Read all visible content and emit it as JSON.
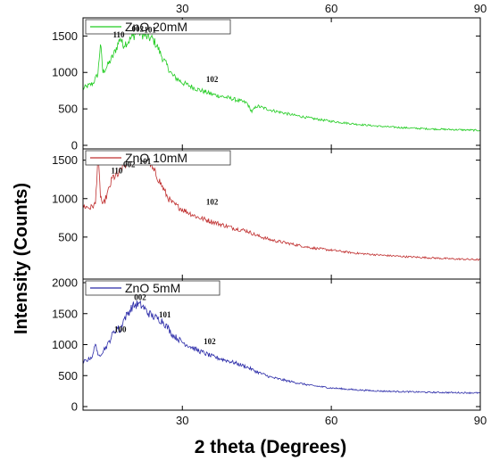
{
  "chart_data": {
    "type": "line",
    "xlabel": "2 theta (Degrees)",
    "ylabel": "Intensity (Counts)",
    "x_ticks": [
      30,
      60,
      90
    ],
    "xlim": [
      10,
      90
    ],
    "panels": [
      {
        "legend": "ZnO  20mM",
        "color": "#22cc22",
        "ylim": [
          0,
          1700
        ],
        "y_ticks": [
          0,
          500,
          1000,
          1500
        ],
        "peaks": [
          {
            "label": "110",
            "x": 17.2,
            "y": 1480
          },
          {
            "label": "002",
            "x": 21.0,
            "y": 1560
          },
          {
            "label": "101",
            "x": 23.5,
            "y": 1550
          },
          {
            "label": "102",
            "x": 36.0,
            "y": 870
          }
        ],
        "series": [
          {
            "x": [
              10,
              12,
              13,
              13.5,
              14,
              15,
              16,
              17,
              17.5,
              18,
              19,
              20,
              21,
              22,
              23,
              24,
              25,
              26,
              27,
              28,
              30,
              33,
              36,
              40,
              43,
              44,
              45,
              48,
              52,
              56,
              60,
              65,
              70,
              75,
              80,
              85,
              90
            ],
            "values": [
              780,
              850,
              980,
              1400,
              1000,
              1100,
              1220,
              1380,
              1480,
              1380,
              1420,
              1490,
              1560,
              1520,
              1480,
              1460,
              1350,
              1200,
              1080,
              960,
              860,
              770,
              700,
              640,
              580,
              460,
              540,
              480,
              420,
              370,
              330,
              290,
              260,
              240,
              225,
              215,
              205
            ]
          }
        ]
      },
      {
        "legend": "ZnO  10mM",
        "color": "#c03030",
        "ylim": [
          0,
          1600
        ],
        "y_ticks": [
          500,
          1000,
          1500
        ],
        "peaks": [
          {
            "label": "110",
            "x": 16.8,
            "y": 1330
          },
          {
            "label": "002",
            "x": 19.3,
            "y": 1410
          },
          {
            "label": "101",
            "x": 22.5,
            "y": 1450
          },
          {
            "label": "102",
            "x": 36.0,
            "y": 920
          }
        ],
        "series": [
          {
            "x": [
              10,
              11.5,
              12.5,
              13,
              13.5,
              14,
              15,
              16,
              17,
              18,
              19,
              20,
              21,
              22,
              23,
              24,
              25,
              26,
              27,
              28,
              30,
              33,
              36,
              40,
              43,
              45,
              48,
              52,
              56,
              60,
              65,
              70,
              75,
              80,
              85,
              90
            ],
            "values": [
              900,
              880,
              930,
              1560,
              1050,
              900,
              1080,
              1280,
              1300,
              1420,
              1460,
              1500,
              1520,
              1480,
              1530,
              1380,
              1280,
              1150,
              1020,
              940,
              860,
              760,
              700,
              620,
              580,
              520,
              460,
              410,
              360,
              330,
              290,
              265,
              245,
              230,
              215,
              205
            ]
          }
        ]
      },
      {
        "legend": "ZnO  5mM",
        "color": "#2a2aa8",
        "ylim": [
          0,
          2000
        ],
        "y_ticks": [
          0,
          500,
          1000,
          1500,
          2000
        ],
        "peaks": [
          {
            "label": "100",
            "x": 17.5,
            "y": 1200
          },
          {
            "label": "002",
            "x": 21.5,
            "y": 1720
          },
          {
            "label": "101",
            "x": 26.5,
            "y": 1440
          },
          {
            "label": "102",
            "x": 35.5,
            "y": 1010
          }
        ],
        "series": [
          {
            "x": [
              10,
              11,
              12,
              12.5,
              13,
              14,
              15,
              16,
              17,
              17.5,
              18,
              19,
              20,
              21,
              22,
              23,
              24,
              25,
              26,
              27,
              28,
              30,
              33,
              36,
              40,
              43,
              45,
              48,
              52,
              56,
              60,
              65,
              70,
              75,
              80,
              85,
              90
            ],
            "values": [
              720,
              760,
              820,
              1050,
              800,
              900,
              1000,
              1180,
              1280,
              1200,
              1380,
              1500,
              1620,
              1650,
              1620,
              1520,
              1460,
              1420,
              1380,
              1280,
              1160,
              1040,
              910,
              810,
              720,
              640,
              560,
              470,
              400,
              340,
              300,
              270,
              250,
              240,
              230,
              225,
              220
            ]
          }
        ]
      }
    ]
  }
}
